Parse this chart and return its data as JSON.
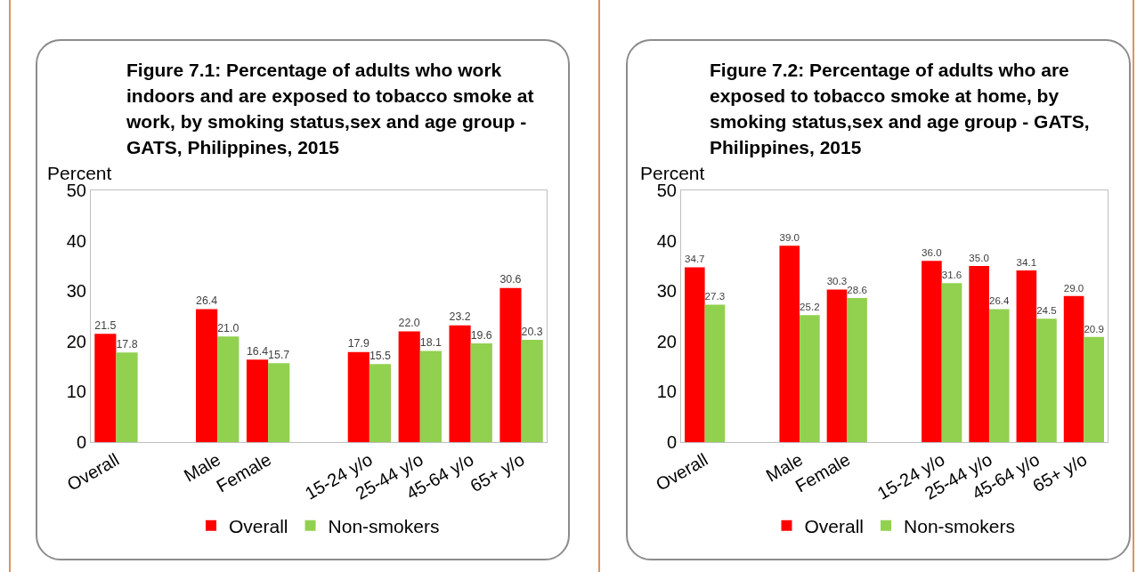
{
  "chart_data": [
    {
      "type": "bar",
      "title": "Figure 7.1:  Percentage of adults who work indoors and are exposed to tobacco smoke at work, by smoking status,sex and age group -  GATS, Philippines, 2015",
      "ylabel": "Percent",
      "categories": [
        "Overall",
        null,
        "Male",
        "Female",
        null,
        "15-24 y/o",
        "25-44 y/o",
        "45-64 y/o",
        "65+ y/o"
      ],
      "series": [
        {
          "name": "Overall",
          "color": "#ff0000",
          "values": [
            21.5,
            null,
            26.4,
            16.4,
            null,
            17.9,
            22.0,
            23.2,
            30.6
          ],
          "value_labels": [
            "21.5",
            null,
            "26.4",
            "16.4",
            null,
            "17.9",
            "22.0",
            "23.2",
            "30.6"
          ]
        },
        {
          "name": "Non-smokers",
          "color": "#92d050",
          "values": [
            17.8,
            null,
            21.0,
            15.7,
            null,
            15.5,
            18.1,
            19.6,
            20.3
          ],
          "value_labels": [
            "17.8",
            null,
            "21.0",
            "15.7",
            null,
            "15.5",
            "18.1",
            "19.6",
            "20.3"
          ]
        }
      ],
      "ylim": [
        0,
        50
      ],
      "yticks": [
        0,
        10,
        20,
        30,
        40,
        50
      ],
      "grid": false,
      "legend": "bottom"
    },
    {
      "type": "bar",
      "title": "Figure 7.2:  Percentage of adults who are exposed to tobacco smoke at home, by smoking status,sex and age group -  GATS, Philippines, 2015",
      "ylabel": "Percent",
      "categories": [
        "Overall",
        null,
        "Male",
        "Female",
        null,
        "15-24 y/o",
        "25-44 y/o",
        "45-64 y/o",
        "65+ y/o"
      ],
      "series": [
        {
          "name": "Overall",
          "color": "#ff0000",
          "values": [
            34.7,
            null,
            39.0,
            30.3,
            null,
            36.0,
            35.0,
            34.1,
            29.0
          ],
          "value_labels": [
            "34.7",
            null,
            "39.0",
            "30.3",
            null,
            "36.0",
            "35.0",
            "34.1",
            "29.0"
          ]
        },
        {
          "name": "Non-smokers",
          "color": "#92d050",
          "values": [
            27.3,
            null,
            25.2,
            28.6,
            null,
            31.6,
            26.4,
            24.5,
            20.9
          ],
          "value_labels": [
            "27.3",
            null,
            "25.2",
            "28.6",
            null,
            "31.6",
            "26.4",
            "24.5",
            "20.9"
          ]
        }
      ],
      "ylim": [
        0,
        50
      ],
      "yticks": [
        0,
        10,
        20,
        30,
        40,
        50
      ],
      "grid": false,
      "legend": "bottom"
    }
  ]
}
